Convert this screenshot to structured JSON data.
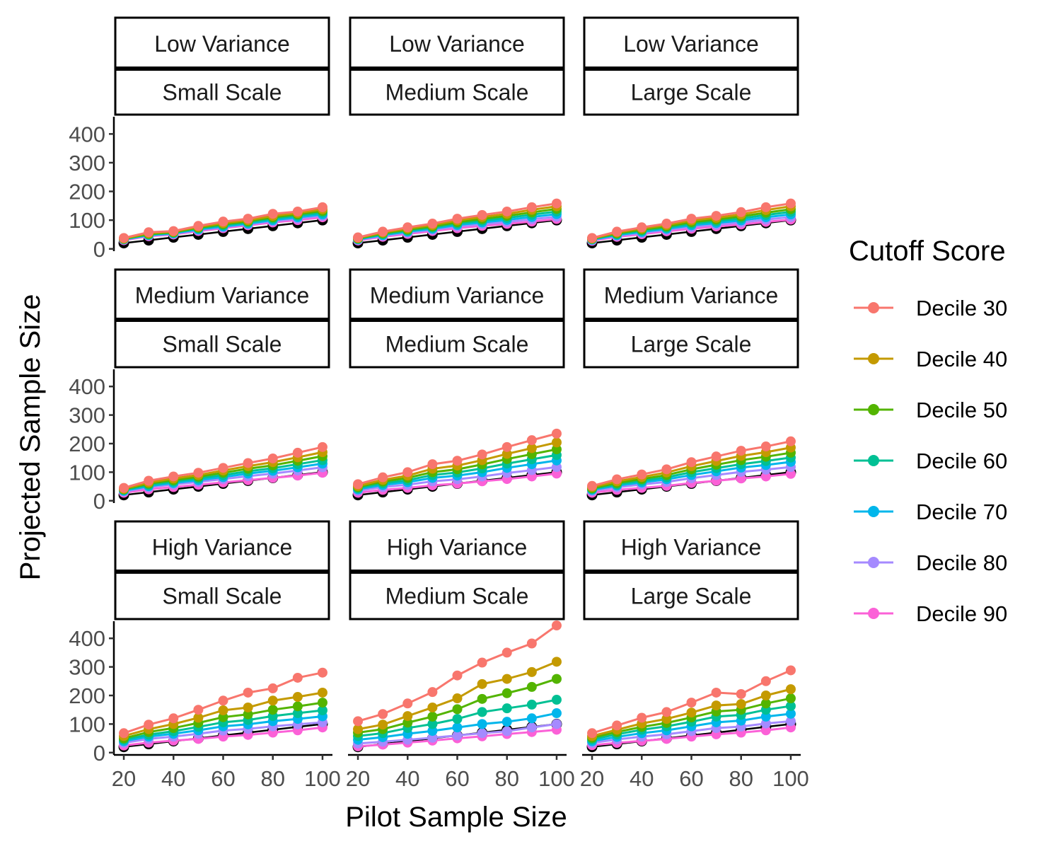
{
  "chart_data": {
    "type": "line",
    "xlabel": "Pilot Sample Size",
    "ylabel": "Projected Sample Size",
    "x": [
      20,
      30,
      40,
      50,
      60,
      70,
      80,
      90,
      100
    ],
    "xticks": [
      "20",
      "40",
      "60",
      "80",
      "100"
    ],
    "yticks": [
      "0",
      "100",
      "200",
      "300",
      "400"
    ],
    "ylim": [
      0,
      460
    ],
    "legend": {
      "title": "Cutoff Score",
      "position": "right",
      "entries": [
        "Decile 30",
        "Decile 40",
        "Decile 50",
        "Decile 60",
        "Decile 70",
        "Decile 80",
        "Decile 90"
      ],
      "colors": [
        "#F8766D",
        "#C49A00",
        "#53B400",
        "#00C094",
        "#00B6EB",
        "#A58AFF",
        "#FB61D7"
      ]
    },
    "reference_color": "#000000",
    "reference_values": [
      20,
      30,
      40,
      50,
      60,
      70,
      80,
      90,
      100
    ],
    "panels": [
      {
        "variance": "Low Variance",
        "scale": "Small Scale",
        "series": [
          {
            "name": "Decile 30",
            "values": [
              38,
              58,
              62,
              80,
              95,
              105,
              122,
              130,
              145
            ]
          },
          {
            "name": "Decile 40",
            "values": [
              36,
              55,
              60,
              77,
              90,
              100,
              115,
              125,
              138
            ]
          },
          {
            "name": "Decile 50",
            "values": [
              35,
              52,
              58,
              74,
              86,
              96,
              110,
              120,
              132
            ]
          },
          {
            "name": "Decile 60",
            "values": [
              34,
              50,
              56,
              71,
              82,
              92,
              105,
              115,
              126
            ]
          },
          {
            "name": "Decile 70",
            "values": [
              33,
              48,
              54,
              68,
              78,
              88,
              100,
              110,
              120
            ]
          },
          {
            "name": "Decile 80",
            "values": [
              32,
              46,
              52,
              65,
              75,
              85,
              96,
              105,
              115
            ]
          },
          {
            "name": "Decile 90",
            "values": [
              30,
              44,
              50,
              62,
              72,
              82,
              92,
              100,
              110
            ]
          }
        ]
      },
      {
        "variance": "Low Variance",
        "scale": "Medium Scale",
        "series": [
          {
            "name": "Decile 30",
            "values": [
              40,
              60,
              75,
              88,
              105,
              118,
              130,
              145,
              158
            ]
          },
          {
            "name": "Decile 40",
            "values": [
              38,
              57,
              71,
              83,
              99,
              111,
              122,
              136,
              148
            ]
          },
          {
            "name": "Decile 50",
            "values": [
              36,
              54,
              67,
              78,
              93,
              104,
              115,
              127,
              139
            ]
          },
          {
            "name": "Decile 60",
            "values": [
              35,
              51,
              63,
              74,
              88,
              98,
              108,
              119,
              130
            ]
          },
          {
            "name": "Decile 70",
            "values": [
              33,
              48,
              60,
              70,
              83,
              92,
              101,
              111,
              121
            ]
          },
          {
            "name": "Decile 80",
            "values": [
              31,
              45,
              56,
              66,
              78,
              86,
              94,
              103,
              112
            ]
          },
          {
            "name": "Decile 90",
            "values": [
              29,
              42,
              52,
              62,
              72,
              80,
              87,
              95,
              104
            ]
          }
        ]
      },
      {
        "variance": "Low Variance",
        "scale": "Large Scale",
        "series": [
          {
            "name": "Decile 30",
            "values": [
              38,
              60,
              75,
              88,
              105,
              115,
              128,
              145,
              158
            ]
          },
          {
            "name": "Decile 40",
            "values": [
              36,
              57,
              71,
              83,
              99,
              108,
              120,
              135,
              148
            ]
          },
          {
            "name": "Decile 50",
            "values": [
              35,
              54,
              67,
              78,
              93,
              102,
              113,
              126,
              138
            ]
          },
          {
            "name": "Decile 60",
            "values": [
              34,
              51,
              63,
              74,
              87,
              96,
              106,
              118,
              129
            ]
          },
          {
            "name": "Decile 70",
            "values": [
              32,
              48,
              59,
              70,
              82,
              90,
              99,
              110,
              120
            ]
          },
          {
            "name": "Decile 80",
            "values": [
              30,
              45,
              55,
              66,
              76,
              84,
              92,
              102,
              111
            ]
          },
          {
            "name": "Decile 90",
            "values": [
              28,
              42,
              51,
              61,
              70,
              78,
              85,
              94,
              102
            ]
          }
        ]
      },
      {
        "variance": "Medium Variance",
        "scale": "Small Scale",
        "series": [
          {
            "name": "Decile 30",
            "values": [
              45,
              70,
              85,
              98,
              115,
              132,
              148,
              168,
              188
            ]
          },
          {
            "name": "Decile 40",
            "values": [
              42,
              64,
              78,
              90,
              106,
              121,
              135,
              152,
              170
            ]
          },
          {
            "name": "Decile 50",
            "values": [
              40,
              60,
              72,
              84,
              98,
              112,
              124,
              140,
              156
            ]
          },
          {
            "name": "Decile 60",
            "values": [
              38,
              55,
              67,
              78,
              90,
              103,
              114,
              128,
              142
            ]
          },
          {
            "name": "Decile 70",
            "values": [
              35,
              51,
              62,
              72,
              83,
              95,
              105,
              117,
              130
            ]
          },
          {
            "name": "Decile 80",
            "values": [
              32,
              47,
              57,
              66,
              76,
              86,
              95,
              106,
              117
            ]
          },
          {
            "name": "Decile 90",
            "values": [
              28,
              40,
              48,
              56,
              64,
              72,
              80,
              88,
              98
            ]
          }
        ]
      },
      {
        "variance": "Medium Variance",
        "scale": "Medium Scale",
        "series": [
          {
            "name": "Decile 30",
            "values": [
              58,
              82,
              100,
              128,
              140,
              162,
              188,
              212,
              235
            ]
          },
          {
            "name": "Decile 40",
            "values": [
              52,
              73,
              88,
              112,
              123,
              142,
              164,
              184,
              204
            ]
          },
          {
            "name": "Decile 50",
            "values": [
              48,
              67,
              80,
              100,
              110,
              127,
              146,
              163,
              180
            ]
          },
          {
            "name": "Decile 60",
            "values": [
              44,
              61,
              72,
              90,
              99,
              113,
              130,
              145,
              160
            ]
          },
          {
            "name": "Decile 70",
            "values": [
              40,
              55,
              65,
              80,
              88,
              100,
              115,
              128,
              141
            ]
          },
          {
            "name": "Decile 80",
            "values": [
              35,
              48,
              56,
              68,
              75,
              85,
              97,
              107,
              118
            ]
          },
          {
            "name": "Decile 90",
            "values": [
              28,
              38,
              45,
              54,
              60,
              68,
              76,
              85,
              95
            ]
          }
        ]
      },
      {
        "variance": "Medium Variance",
        "scale": "Large Scale",
        "series": [
          {
            "name": "Decile 30",
            "values": [
              52,
              75,
              92,
              110,
              135,
              155,
              175,
              190,
              208
            ]
          },
          {
            "name": "Decile 40",
            "values": [
              48,
              68,
              83,
              99,
              121,
              139,
              157,
              170,
              186
            ]
          },
          {
            "name": "Decile 50",
            "values": [
              44,
              62,
              76,
              90,
              110,
              126,
              142,
              154,
              168
            ]
          },
          {
            "name": "Decile 60",
            "values": [
              41,
              57,
              70,
              82,
              100,
              114,
              128,
              139,
              151
            ]
          },
          {
            "name": "Decile 70",
            "values": [
              38,
              53,
              64,
              75,
              90,
              103,
              116,
              125,
              136
            ]
          },
          {
            "name": "Decile 80",
            "values": [
              34,
              47,
              57,
              66,
              79,
              90,
              101,
              109,
              118
            ]
          },
          {
            "name": "Decile 90",
            "values": [
              28,
              38,
              45,
              52,
              62,
              70,
              78,
              85,
              94
            ]
          }
        ]
      },
      {
        "variance": "High Variance",
        "scale": "Small Scale",
        "series": [
          {
            "name": "Decile 30",
            "values": [
              68,
              98,
              120,
              150,
              182,
              210,
              225,
              262,
              280
            ]
          },
          {
            "name": "Decile 40",
            "values": [
              58,
              82,
              100,
              122,
              148,
              158,
              182,
              195,
              210
            ]
          },
          {
            "name": "Decile 50",
            "values": [
              50,
              72,
              86,
              104,
              124,
              134,
              150,
              162,
              175
            ]
          },
          {
            "name": "Decile 60",
            "values": [
              45,
              63,
              75,
              90,
              106,
              114,
              128,
              138,
              148
            ]
          },
          {
            "name": "Decile 70",
            "values": [
              40,
              56,
              66,
              78,
              92,
              99,
              110,
              118,
              127
            ]
          },
          {
            "name": "Decile 80",
            "values": [
              34,
              48,
              56,
              66,
              77,
              83,
              92,
              99,
              106
            ]
          },
          {
            "name": "Decile 90",
            "values": [
              25,
              35,
              42,
              48,
              56,
              62,
              70,
              78,
              88
            ]
          }
        ]
      },
      {
        "variance": "High Variance",
        "scale": "Medium Scale",
        "series": [
          {
            "name": "Decile 30",
            "values": [
              110,
              135,
              172,
              212,
              270,
              315,
              350,
              382,
              445
            ]
          },
          {
            "name": "Decile 40",
            "values": [
              82,
              98,
              128,
              158,
              190,
              240,
              258,
              282,
              318
            ]
          },
          {
            "name": "Decile 50",
            "values": [
              70,
              82,
              105,
              126,
              152,
              188,
              208,
              230,
              258
            ]
          },
          {
            "name": "Decile 60",
            "values": [
              58,
              68,
              86,
              100,
              118,
              142,
              155,
              168,
              185
            ]
          },
          {
            "name": "Decile 70",
            "values": [
              45,
              54,
              66,
              76,
              88,
              100,
              108,
              120,
              138
            ]
          },
          {
            "name": "Decile 80",
            "values": [
              32,
              38,
              45,
              52,
              60,
              68,
              75,
              88,
              100
            ]
          },
          {
            "name": "Decile 90",
            "values": [
              22,
              28,
              35,
              42,
              50,
              57,
              65,
              72,
              80
            ]
          }
        ]
      },
      {
        "variance": "High Variance",
        "scale": "Large Scale",
        "series": [
          {
            "name": "Decile 30",
            "values": [
              68,
              95,
              122,
              142,
              175,
              210,
              205,
              250,
              288
            ]
          },
          {
            "name": "Decile 40",
            "values": [
              58,
              80,
              102,
              118,
              140,
              165,
              170,
              200,
              222
            ]
          },
          {
            "name": "Decile 50",
            "values": [
              52,
              72,
              90,
              104,
              123,
              144,
              150,
              172,
              190
            ]
          },
          {
            "name": "Decile 60",
            "values": [
              46,
              64,
              80,
              92,
              108,
              126,
              132,
              150,
              163
            ]
          },
          {
            "name": "Decile 70",
            "values": [
              40,
              55,
              68,
              78,
              92,
              106,
              112,
              126,
              136
            ]
          },
          {
            "name": "Decile 80",
            "values": [
              34,
              46,
              56,
              64,
              75,
              86,
              91,
              102,
              110
            ]
          },
          {
            "name": "Decile 90",
            "values": [
              26,
              34,
              41,
              48,
              56,
              64,
              70,
              78,
              88
            ]
          }
        ]
      }
    ]
  }
}
